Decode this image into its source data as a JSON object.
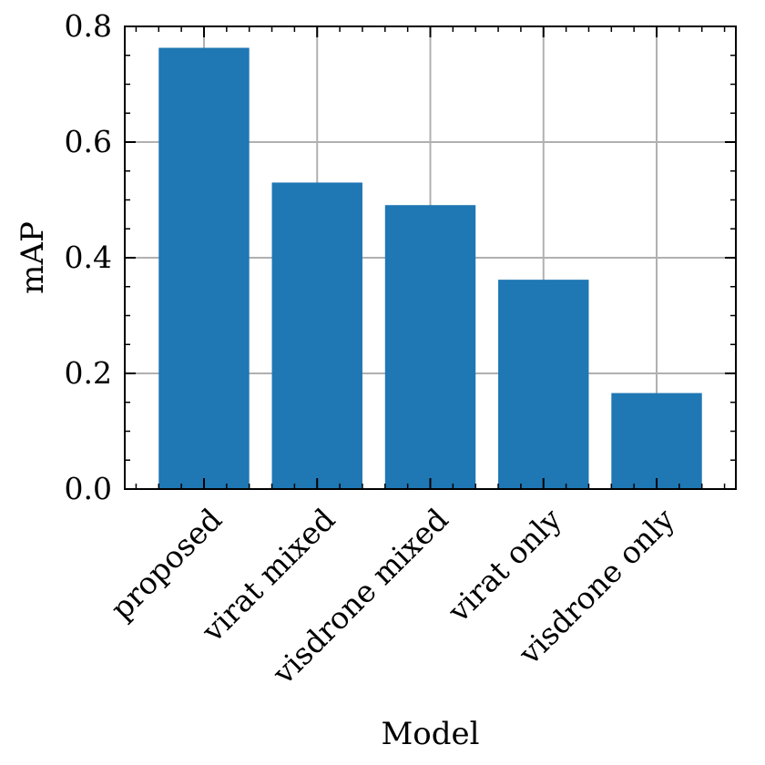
{
  "chart_data": {
    "type": "bar",
    "title": "",
    "xlabel": "Model",
    "ylabel": "mAP",
    "categories": [
      "proposed",
      "virat mixed",
      "visdrone mixed",
      "virat only",
      "visdrone only"
    ],
    "values": [
      0.763,
      0.53,
      0.491,
      0.362,
      0.166
    ],
    "ylim": [
      0,
      0.8
    ],
    "yticks": [
      0.0,
      0.2,
      0.4,
      0.6,
      0.8
    ],
    "ytick_labels": [
      "0.0",
      "0.2",
      "0.4",
      "0.6",
      "0.8"
    ],
    "grid": true,
    "legend": "none",
    "bar_color": "#1f77b4",
    "grid_color": "#b0b0b0"
  }
}
